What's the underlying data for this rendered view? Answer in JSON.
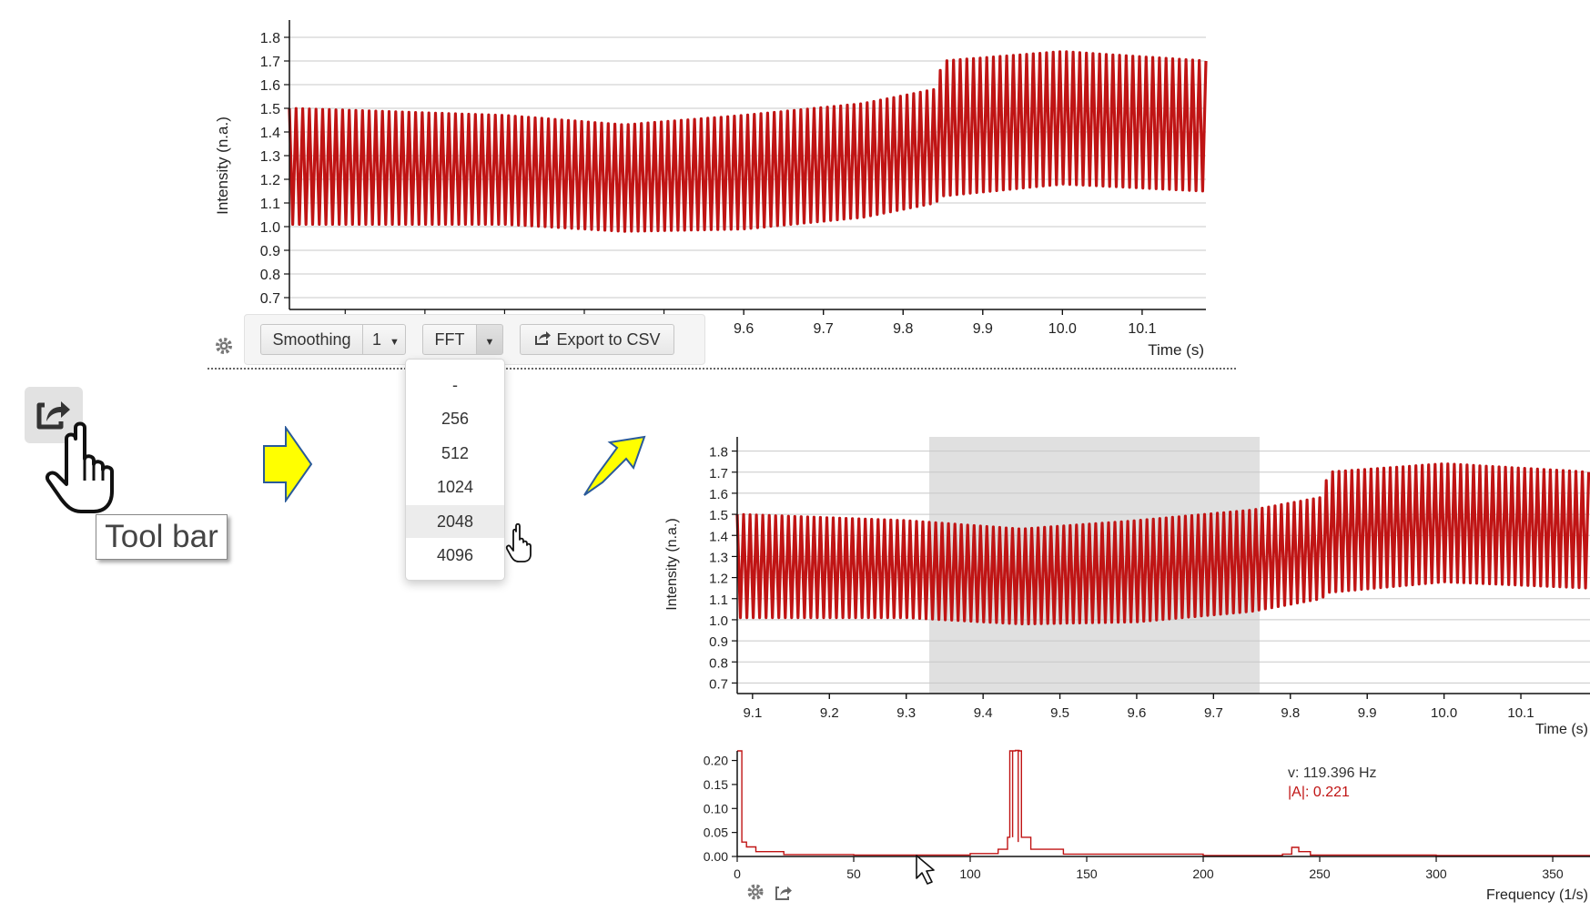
{
  "top_chart": {
    "ylabel": "Intensity (n.a.)",
    "xlabel": "Time (s)",
    "y_ticks": [
      "1.8",
      "1.7",
      "1.6",
      "1.5",
      "1.4",
      "1.3",
      "1.2",
      "1.1",
      "1.0",
      "0.9",
      "0.8",
      "0.7"
    ],
    "x_ticks": [
      "9.6",
      "9.7",
      "9.8",
      "9.9",
      "10.0",
      "10.1"
    ]
  },
  "toolbar": {
    "smoothing_label": "Smoothing",
    "smoothing_value": "1",
    "fft_label": "FFT",
    "export_label": "Export to CSV"
  },
  "fft_dropdown": {
    "options": [
      "-",
      "256",
      "512",
      "1024",
      "2048",
      "4096"
    ],
    "highlighted": "2048"
  },
  "tool_bar_tooltip": "Tool bar",
  "bottom_chart": {
    "ylabel": "Intensity (n.a.)",
    "xlabel": "Time (s)",
    "y_ticks": [
      "1.8",
      "1.7",
      "1.6",
      "1.5",
      "1.4",
      "1.3",
      "1.2",
      "1.1",
      "1.0",
      "0.9",
      "0.8",
      "0.7"
    ],
    "x_ticks": [
      "9.1",
      "9.2",
      "9.3",
      "9.4",
      "9.5",
      "9.6",
      "9.7",
      "9.8",
      "9.9",
      "10.0",
      "10.1"
    ],
    "selection_range": [
      9.33,
      9.76
    ]
  },
  "fft_chart": {
    "xlabel": "Frequency (1/s)",
    "y_ticks": [
      "0.20",
      "0.15",
      "0.10",
      "0.05",
      "0.00"
    ],
    "x_ticks": [
      "0",
      "50",
      "100",
      "150",
      "200",
      "250",
      "300",
      "350"
    ],
    "readout_freq": "v: 119.396 Hz",
    "readout_amp": "|A|: 0.221"
  },
  "chart_data": [
    {
      "type": "line",
      "xlabel": "Time (s)",
      "ylabel": "Intensity (n.a.)",
      "xlim": [
        9.03,
        10.18
      ],
      "ylim": [
        0.65,
        1.85
      ],
      "series": [
        {
          "x": [
            9.03,
            9.3,
            9.45,
            9.6,
            9.75,
            9.84,
            9.85,
            10.0,
            10.18
          ],
          "upper": [
            1.5,
            1.47,
            1.43,
            1.47,
            1.52,
            1.58,
            1.7,
            1.74,
            1.7
          ],
          "lower": [
            1.01,
            1.01,
            0.98,
            0.99,
            1.04,
            1.1,
            1.13,
            1.18,
            1.15
          ]
        }
      ]
    },
    {
      "type": "line",
      "xlabel": "Time (s)",
      "ylabel": "Intensity (n.a.)",
      "xlim": [
        9.08,
        10.19
      ],
      "ylim": [
        0.65,
        1.85
      ],
      "series": [
        {
          "x": [
            9.08,
            9.3,
            9.45,
            9.6,
            9.75,
            9.84,
            9.85,
            10.0,
            10.19
          ],
          "upper": [
            1.5,
            1.47,
            1.43,
            1.47,
            1.52,
            1.58,
            1.7,
            1.74,
            1.7
          ],
          "lower": [
            1.01,
            1.01,
            0.98,
            0.99,
            1.04,
            1.1,
            1.13,
            1.18,
            1.15
          ]
        }
      ]
    },
    {
      "type": "line",
      "xlabel": "Frequency (1/s)",
      "xlim": [
        0,
        366
      ],
      "ylim": [
        0,
        0.22
      ],
      "series": [
        {
          "x": [
            0,
            0.5,
            2,
            4,
            8,
            20,
            50,
            100,
            112,
            116,
            117,
            119.4,
            121,
            122,
            126,
            140,
            200,
            234,
            238,
            241,
            246,
            300,
            366
          ],
          "y": [
            0.22,
            0.22,
            0.03,
            0.02,
            0.01,
            0.004,
            0.003,
            0.006,
            0.015,
            0.04,
            0.22,
            0.221,
            0.22,
            0.04,
            0.015,
            0.005,
            0.002,
            0.005,
            0.019,
            0.01,
            0.003,
            0.002,
            0.002
          ]
        }
      ]
    }
  ],
  "colors": {
    "signal": "#c01414",
    "selection": "#e0e0e0",
    "arrow_fill": "#ffff00",
    "arrow_stroke": "#2a5a9a"
  }
}
